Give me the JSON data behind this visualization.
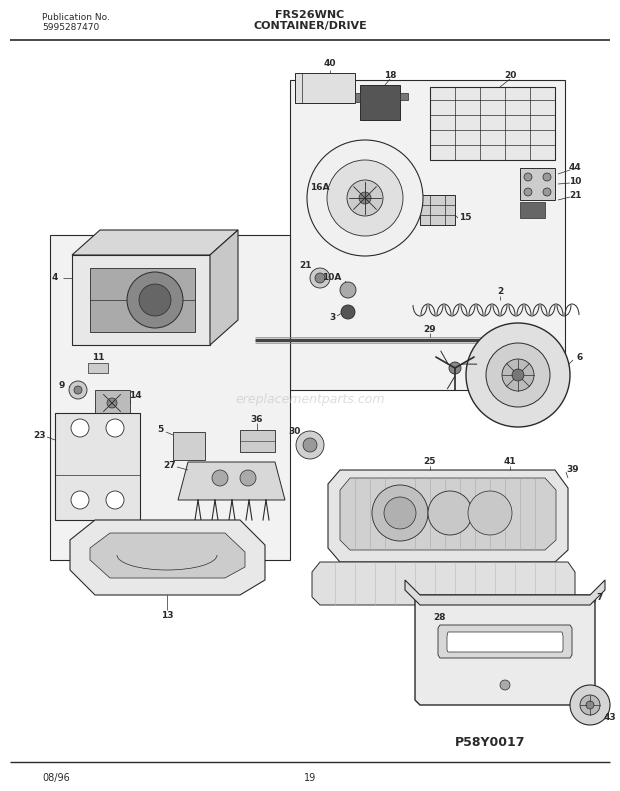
{
  "title_model": "FRS26WNC",
  "title_section": "CONTAINER/DRIVE",
  "pub_no_label": "Publication No.",
  "pub_no_value": "5995287470",
  "diagram_id": "P58Y0017",
  "date": "08/96",
  "page": "19",
  "bg_color": "#ffffff",
  "line_color": "#2a2a2a",
  "watermark": "ereplacementparts.com",
  "fig_width": 6.2,
  "fig_height": 7.91,
  "dpi": 100
}
